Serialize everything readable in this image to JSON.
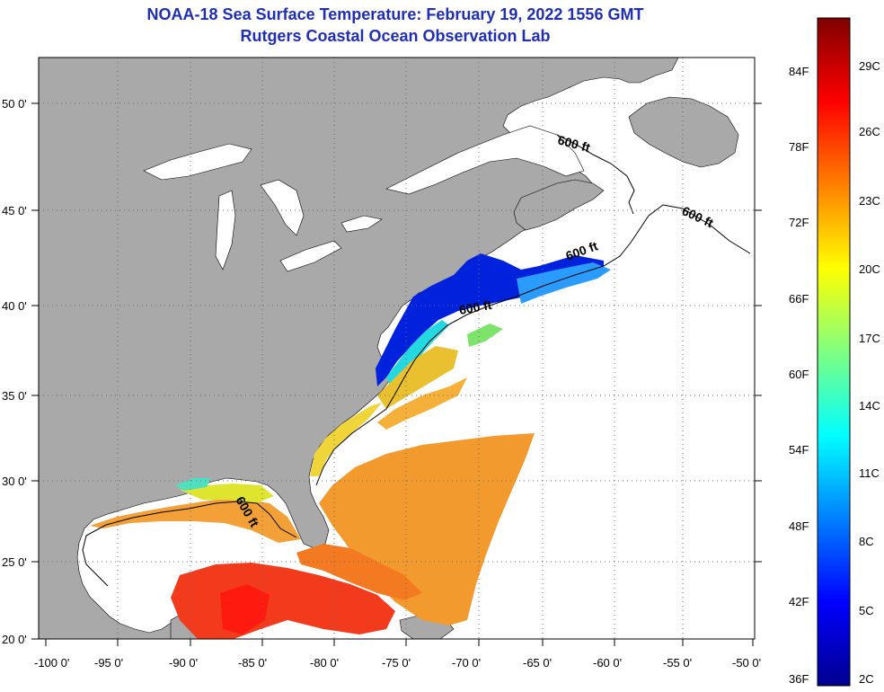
{
  "header": {
    "title_line1": "NOAA-18 Sea Surface Temperature:  February 19, 2022 1556 GMT",
    "title_line2": "Rutgers Coastal Ocean Observation Lab"
  },
  "colors": {
    "title": "#1f2fb0",
    "land": "#a9a9a9",
    "ocean_no_data": "#ffffff",
    "gridline": "#6b6b6b"
  },
  "axes": {
    "longitude_ticks": [
      "-100 0'",
      "-95 0'",
      "-90 0'",
      "-85 0'",
      "-80 0'",
      "-75 0'",
      "-70 0'",
      "-65 0'",
      "-60 0'",
      "-55 0'",
      "-50 0'"
    ],
    "latitude_ticks": [
      "50 0'",
      "45 0'",
      "40 0'",
      "35 0'",
      "30 0'",
      "25 0'",
      "20 0'"
    ]
  },
  "contour_labels": [
    "600 ft",
    "600 ft",
    "600 ft",
    "600 ft",
    "600 ft"
  ],
  "colorbar": {
    "fahrenheit_labels": [
      "84F",
      "78F",
      "72F",
      "66F",
      "60F",
      "54F",
      "48F",
      "42F",
      "36F"
    ],
    "celsius_labels": [
      "29C",
      "26C",
      "23C",
      "20C",
      "17C",
      "14C",
      "11C",
      "8C",
      "5C",
      "2C"
    ],
    "scale_colors": [
      "#00008f",
      "#0000ff",
      "#0080ff",
      "#00ffff",
      "#80ff80",
      "#ffff00",
      "#ff8000",
      "#ff0000",
      "#800000"
    ]
  }
}
